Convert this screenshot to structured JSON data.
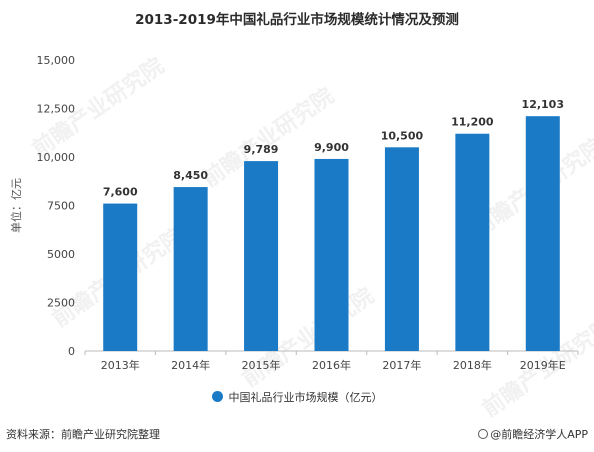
{
  "title": "2013-2019年中国礼品行业市场规模统计情况及预测",
  "colors": {
    "bar": "#1a7ac5",
    "axis": "#bbbbbb",
    "text": "#444444"
  },
  "chart_data": {
    "type": "bar",
    "title": "2013-2019年中国礼品行业市场规模统计情况及预测",
    "ylabel": "单位：亿元",
    "xlabel": "",
    "categories": [
      "2013年",
      "2014年",
      "2015年",
      "2016年",
      "2017年",
      "2018年",
      "2019年E"
    ],
    "series": [
      {
        "name": "中国礼品行业市场规模（亿元）",
        "values": [
          7600,
          8450,
          9789,
          9900,
          10500,
          11200,
          12103
        ]
      }
    ],
    "data_labels": [
      "7,600",
      "8,450",
      "9,789",
      "9,900",
      "10,500",
      "11,200",
      "12,103"
    ],
    "ylim": [
      0,
      15000
    ],
    "yticks": [
      0,
      2500,
      5000,
      7500,
      10000,
      12500,
      15000
    ],
    "ytick_labels": [
      "0",
      "2500",
      "5000",
      "7500",
      "10,000",
      "12,500",
      "15,000"
    ],
    "grid": false,
    "legend_position": "bottom-center"
  },
  "legend": {
    "label": "中国礼品行业市场规模（亿元）"
  },
  "footer": {
    "source": "资料来源：前瞻产业研究院整理",
    "brand": "@前瞻经济学人APP"
  },
  "watermark": {
    "text": "前瞻产业研究院"
  }
}
